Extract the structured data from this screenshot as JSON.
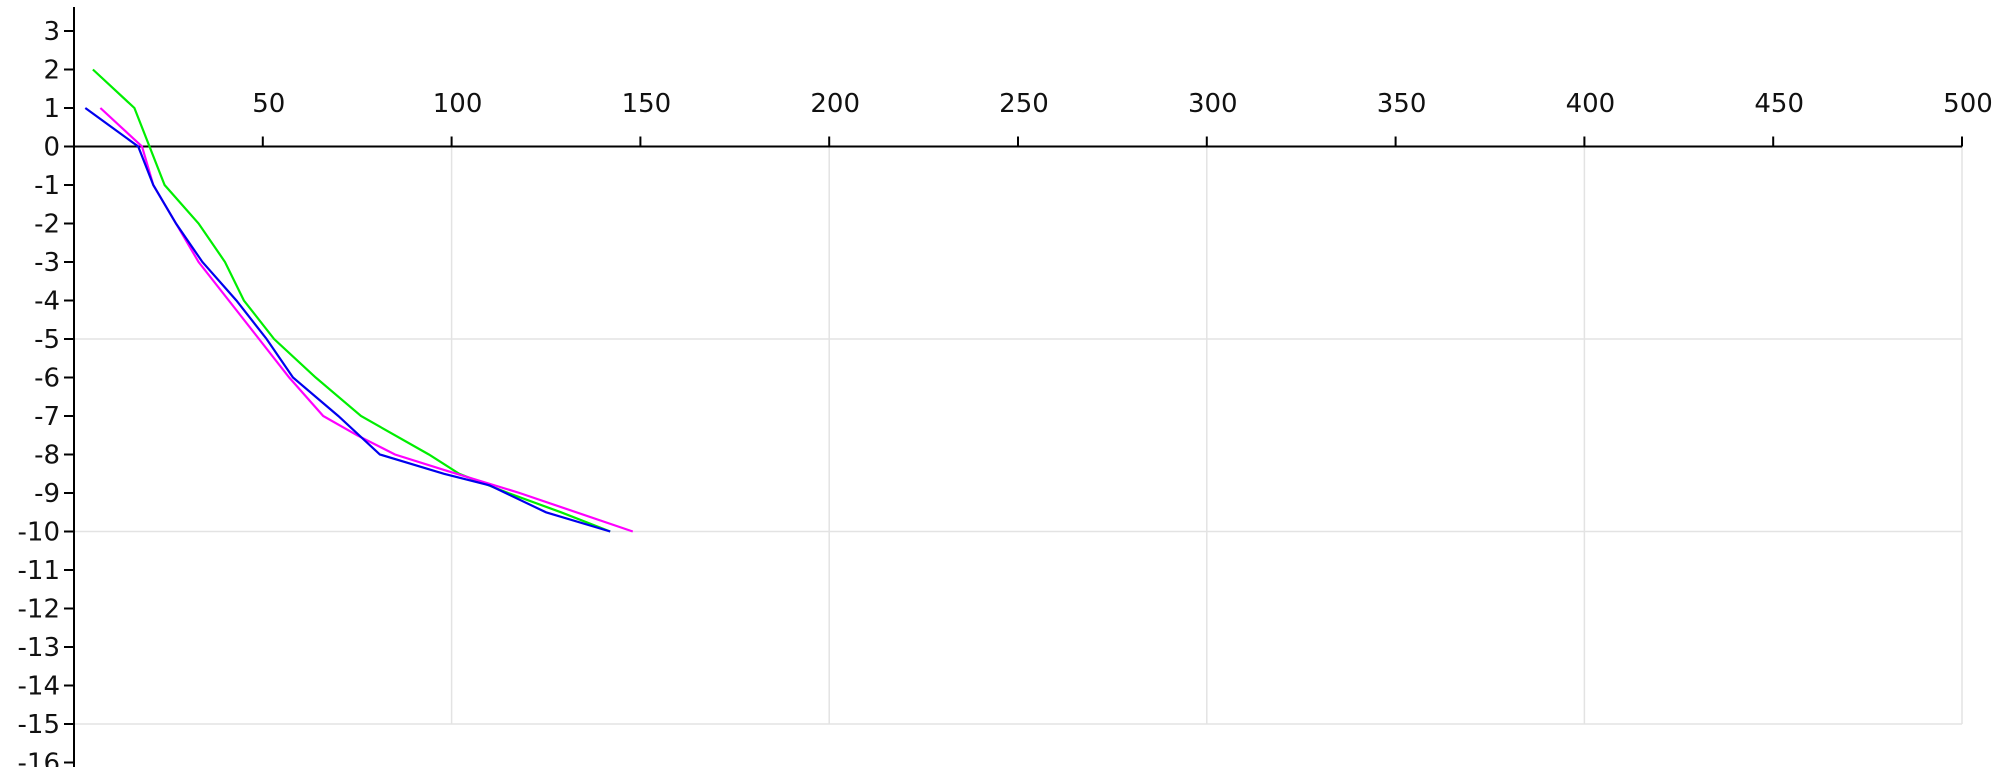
{
  "chart_data": {
    "type": "line",
    "title": "",
    "xlabel": "",
    "ylabel": "",
    "xlim": [
      0,
      500
    ],
    "ylim": [
      -16,
      3
    ],
    "x_ticks": [
      50,
      100,
      150,
      200,
      250,
      300,
      350,
      400,
      450,
      500
    ],
    "y_ticks": [
      3,
      2,
      1,
      0,
      -1,
      -2,
      -3,
      -4,
      -5,
      -6,
      -7,
      -8,
      -9,
      -10,
      -11,
      -12,
      -13,
      -14,
      -15,
      -16
    ],
    "x_gridlines": [
      100,
      200,
      300,
      400,
      500
    ],
    "y_gridlines": [
      -5,
      -10,
      -15
    ],
    "grid": true,
    "legend": "none",
    "series": [
      {
        "color": "#00ee00",
        "points": [
          [
            5,
            2
          ],
          [
            16,
            1
          ],
          [
            20,
            0
          ],
          [
            24,
            -1
          ],
          [
            33,
            -2
          ],
          [
            40,
            -3
          ],
          [
            45,
            -4
          ],
          [
            53,
            -5
          ],
          [
            64,
            -6
          ],
          [
            76,
            -7
          ],
          [
            94,
            -8
          ],
          [
            102,
            -8.5
          ],
          [
            115,
            -9
          ],
          [
            129,
            -9.5
          ],
          [
            142,
            -10
          ]
        ]
      },
      {
        "color": "#ff00ff",
        "points": [
          [
            7,
            1
          ],
          [
            18,
            0
          ],
          [
            21,
            -1
          ],
          [
            27,
            -2
          ],
          [
            33,
            -3
          ],
          [
            41,
            -4
          ],
          [
            49,
            -5
          ],
          [
            57,
            -6
          ],
          [
            66,
            -7
          ],
          [
            75,
            -7.5
          ],
          [
            85,
            -8
          ],
          [
            98,
            -8.4
          ],
          [
            118,
            -9
          ],
          [
            148,
            -10
          ]
        ]
      },
      {
        "color": "#0000ee",
        "points": [
          [
            3,
            1
          ],
          [
            17,
            0
          ],
          [
            21,
            -1
          ],
          [
            27,
            -2
          ],
          [
            34,
            -3
          ],
          [
            43,
            -4
          ],
          [
            51,
            -5
          ],
          [
            58,
            -6
          ],
          [
            70,
            -7
          ],
          [
            81,
            -8
          ],
          [
            98,
            -8.5
          ],
          [
            110,
            -8.8
          ],
          [
            125,
            -9.5
          ],
          [
            142,
            -10
          ]
        ]
      }
    ]
  }
}
